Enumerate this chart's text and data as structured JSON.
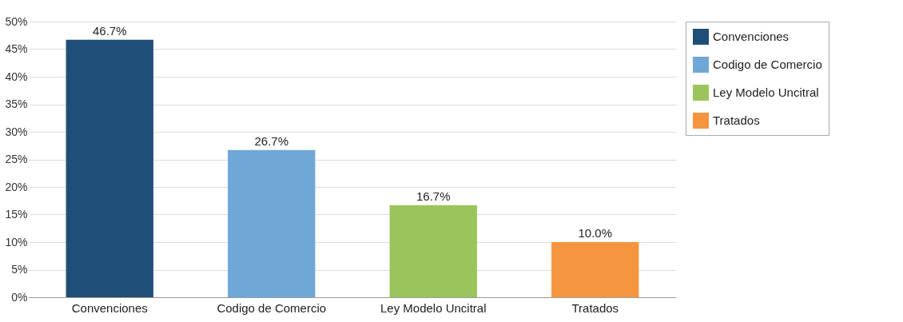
{
  "chart_data": {
    "type": "bar",
    "categories": [
      "Convenciones",
      "Codigo de Comercio",
      "Ley Modelo Uncitral",
      "Tratados"
    ],
    "series": [
      {
        "name": "Convenciones",
        "color": "#1f4e79",
        "values": [
          46.7,
          null,
          null,
          null
        ],
        "value_labels": [
          "46.7%",
          null,
          null,
          null
        ]
      },
      {
        "name": "Codigo de Comercio",
        "color": "#6fa8d6",
        "values": [
          null,
          26.7,
          null,
          null
        ],
        "value_labels": [
          null,
          "26.7%",
          null,
          null
        ]
      },
      {
        "name": "Ley Modelo Uncitral",
        "color": "#9bc55a",
        "values": [
          null,
          null,
          16.7,
          null
        ],
        "value_labels": [
          null,
          null,
          "16.7%",
          null
        ]
      },
      {
        "name": "Tratados",
        "color": "#f5953f",
        "values": [
          null,
          null,
          null,
          10.0
        ],
        "value_labels": [
          null,
          null,
          null,
          "10.0%"
        ]
      }
    ],
    "stacked": true,
    "ylim": [
      0,
      50
    ],
    "yticks": [
      {
        "value": 0,
        "label": "0%"
      },
      {
        "value": 5,
        "label": "5%"
      },
      {
        "value": 10,
        "label": "10%"
      },
      {
        "value": 15,
        "label": "15%"
      },
      {
        "value": 20,
        "label": "20%"
      },
      {
        "value": 25,
        "label": "25%"
      },
      {
        "value": 30,
        "label": "30%"
      },
      {
        "value": 35,
        "label": "35%"
      },
      {
        "value": 40,
        "label": "40%"
      },
      {
        "value": 45,
        "label": "45%"
      },
      {
        "value": 50,
        "label": "50%"
      }
    ],
    "grid": "y",
    "legend": "right"
  }
}
